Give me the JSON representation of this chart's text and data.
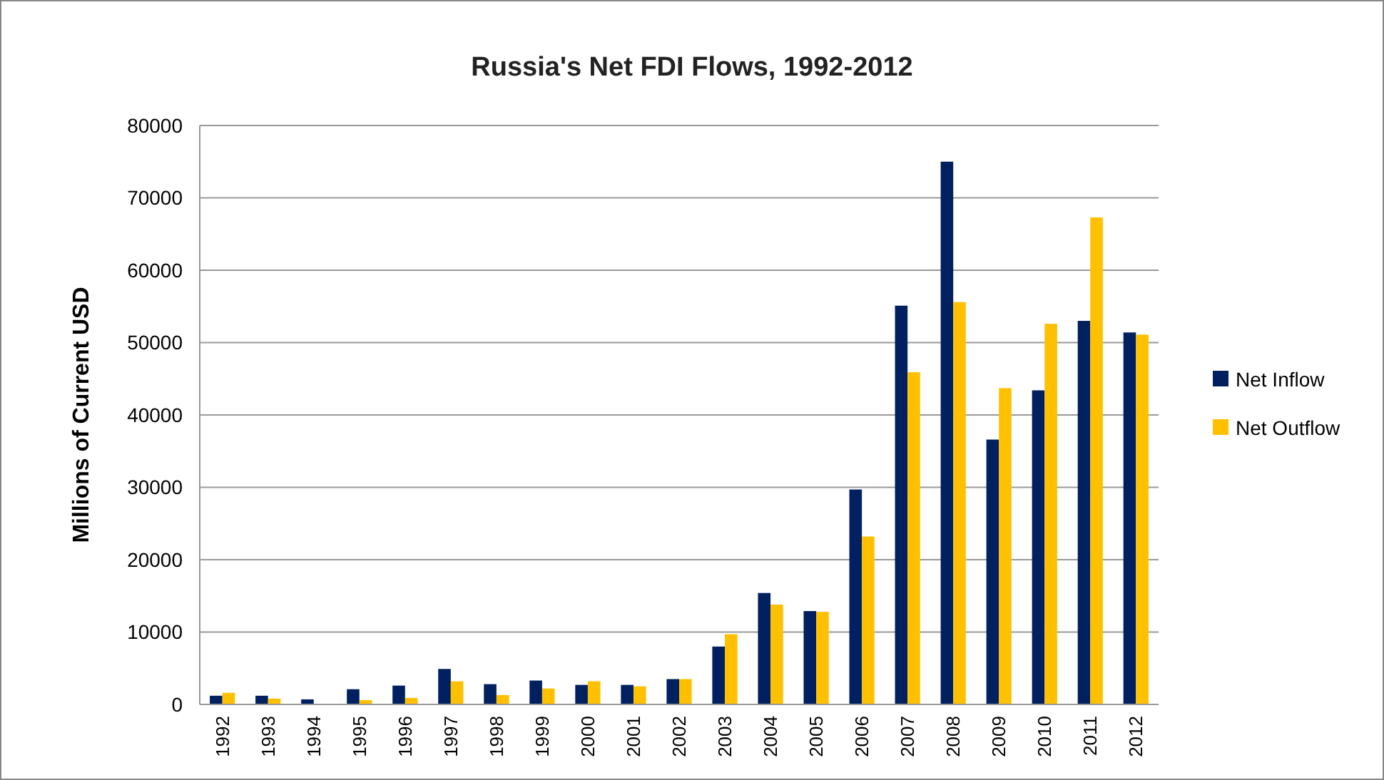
{
  "chart_data": {
    "type": "bar",
    "title": "Russia's Net FDI Flows, 1992-2012",
    "ylabel": "Millions of Current USD",
    "categories": [
      "1992",
      "1993",
      "1994",
      "1995",
      "1996",
      "1997",
      "1998",
      "1999",
      "2000",
      "2001",
      "2002",
      "2003",
      "2004",
      "2005",
      "2006",
      "2007",
      "2008",
      "2009",
      "2010",
      "2011",
      "2012"
    ],
    "series": [
      {
        "name": "Net Inflow",
        "color": "#002060",
        "values": [
          1200,
          1200,
          700,
          2100,
          2600,
          4900,
          2800,
          3300,
          2700,
          2700,
          3500,
          8000,
          15400,
          12900,
          29700,
          55100,
          75000,
          36600,
          43400,
          53000,
          51400
        ]
      },
      {
        "name": "Net Outflow",
        "color": "#ffc000",
        "values": [
          1600,
          800,
          null,
          600,
          900,
          3200,
          1300,
          2200,
          3200,
          2500,
          3500,
          9700,
          13800,
          12800,
          23200,
          45900,
          55600,
          43700,
          52600,
          67300,
          51100
        ]
      }
    ],
    "ylim": [
      0,
      80000
    ],
    "yticks": [
      0,
      10000,
      20000,
      30000,
      40000,
      50000,
      60000,
      70000,
      80000
    ],
    "grid": "y",
    "legend": "right"
  }
}
